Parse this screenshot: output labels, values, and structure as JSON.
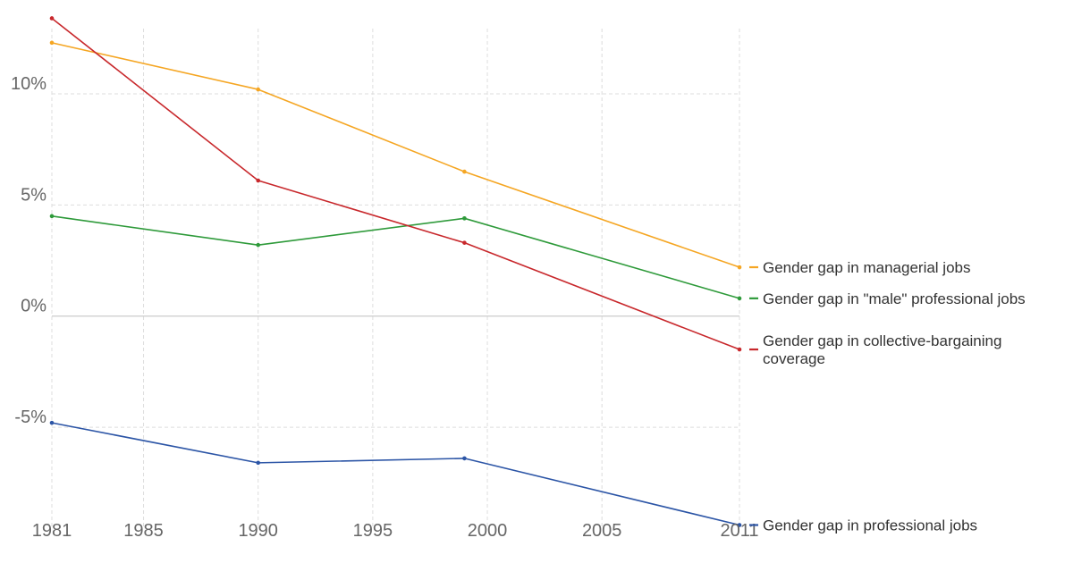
{
  "chart_data": {
    "type": "line",
    "title": "",
    "xlabel": "",
    "ylabel": "",
    "x": [
      1981,
      1990,
      1999,
      2011
    ],
    "xlim": [
      1981,
      2011
    ],
    "ylim": [
      -9.5,
      13.5
    ],
    "x_ticks": [
      1981,
      1985,
      1990,
      1995,
      2000,
      2005,
      2011
    ],
    "x_tick_labels": [
      "1981",
      "1985",
      "1990",
      "1995",
      "2000",
      "2005",
      "2011"
    ],
    "y_ticks": [
      -5,
      0,
      5,
      10
    ],
    "y_tick_labels": [
      "-5%",
      "0%",
      "5%",
      "10%"
    ],
    "grid": true,
    "legend_placement": "right, at line ends",
    "series": [
      {
        "name": "Gender gap in managerial jobs",
        "color": "#f5a623",
        "values": [
          12.3,
          10.2,
          6.5,
          2.2
        ]
      },
      {
        "name": "Gender gap in \"male\" professional jobs",
        "color": "#2e9a3a",
        "values": [
          4.5,
          3.2,
          4.4,
          0.8
        ]
      },
      {
        "name": "Gender gap in collective-bargaining coverage",
        "color": "#c8282c",
        "values": [
          13.4,
          6.1,
          3.3,
          -1.5
        ]
      },
      {
        "name": "Gender gap in professional jobs",
        "color": "#2c55a6",
        "values": [
          -4.8,
          -6.6,
          -6.4,
          -9.4
        ]
      }
    ]
  }
}
